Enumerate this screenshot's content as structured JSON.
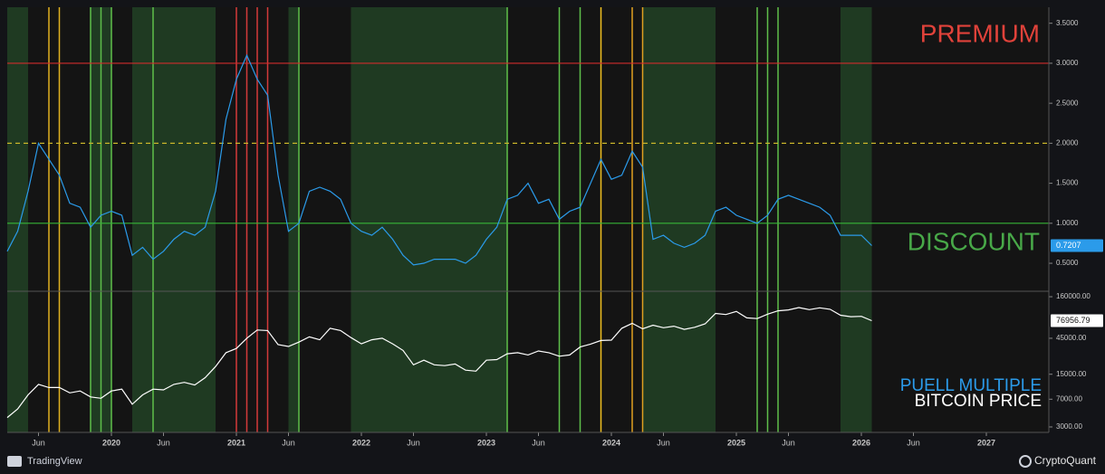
{
  "chart_data": [
    {
      "type": "line",
      "x": [
        "2019-03",
        "2019-04",
        "2019-05",
        "2019-06",
        "2019-07",
        "2019-08",
        "2019-09",
        "2019-10",
        "2019-11",
        "2019-12",
        "2020-01",
        "2020-02",
        "2020-03",
        "2020-04",
        "2020-05",
        "2020-06",
        "2020-07",
        "2020-08",
        "2020-09",
        "2020-10",
        "2020-11",
        "2020-12",
        "2021-01",
        "2021-02",
        "2021-03",
        "2021-04",
        "2021-05",
        "2021-06",
        "2021-07",
        "2021-08",
        "2021-09",
        "2021-10",
        "2021-11",
        "2021-12",
        "2022-01",
        "2022-02",
        "2022-03",
        "2022-04",
        "2022-05",
        "2022-06",
        "2022-07",
        "2022-08",
        "2022-09",
        "2022-10",
        "2022-11",
        "2022-12",
        "2023-01",
        "2023-02",
        "2023-03",
        "2023-04",
        "2023-05",
        "2023-06",
        "2023-07",
        "2023-08",
        "2023-09",
        "2023-10",
        "2023-11",
        "2023-12",
        "2024-01",
        "2024-02",
        "2024-03",
        "2024-04",
        "2024-05",
        "2024-06",
        "2024-07",
        "2024-08",
        "2024-09",
        "2024-10",
        "2024-11",
        "2024-12",
        "2025-01",
        "2025-02",
        "2025-03",
        "2025-04",
        "2025-05",
        "2025-06",
        "2025-07",
        "2025-08",
        "2025-09",
        "2025-10",
        "2025-11",
        "2025-12",
        "2026-01",
        "2026-02"
      ],
      "series": [
        {
          "name": "PUELL MULTIPLE",
          "color": "#2b9bea",
          "values": [
            0.65,
            0.9,
            1.4,
            2.0,
            1.8,
            1.6,
            1.25,
            1.2,
            0.95,
            1.1,
            1.15,
            1.1,
            0.6,
            0.7,
            0.55,
            0.65,
            0.8,
            0.9,
            0.85,
            0.95,
            1.4,
            2.3,
            2.8,
            3.1,
            2.8,
            2.6,
            1.6,
            0.9,
            1.0,
            1.4,
            1.45,
            1.4,
            1.3,
            1.0,
            0.9,
            0.85,
            0.95,
            0.8,
            0.6,
            0.48,
            0.5,
            0.55,
            0.55,
            0.55,
            0.5,
            0.6,
            0.8,
            0.95,
            1.3,
            1.35,
            1.5,
            1.25,
            1.3,
            1.05,
            1.15,
            1.2,
            1.5,
            1.8,
            1.55,
            1.6,
            1.9,
            1.7,
            0.8,
            0.85,
            0.75,
            0.7,
            0.75,
            0.85,
            1.15,
            1.2,
            1.1,
            1.05,
            1.0,
            1.1,
            1.3,
            1.35,
            1.3,
            1.25,
            1.2,
            1.1,
            0.85,
            0.85,
            0.85,
            0.7207
          ]
        }
      ],
      "xlim": [
        "2019-03",
        "2027-07"
      ],
      "ylim": [
        0.15,
        3.7
      ],
      "yticks": [
        {
          "value": 0.5,
          "label": "0.5000"
        },
        {
          "value": 1,
          "label": "1.0000"
        },
        {
          "value": 1.5,
          "label": "1.5000"
        },
        {
          "value": 2,
          "label": "2.0000"
        },
        {
          "value": 2.5,
          "label": "2.5000"
        },
        {
          "value": 3,
          "label": "3.0000"
        },
        {
          "value": 3.5,
          "label": "3.5000"
        }
      ],
      "levels": [
        {
          "value": 3,
          "color": "#d12c2c",
          "dashed": false
        },
        {
          "value": 2,
          "color": "#c9b52a",
          "dashed": true
        },
        {
          "value": 1,
          "color": "#37b437",
          "dashed": false
        }
      ],
      "annotations": [
        {
          "text": "PREMIUM",
          "color": "#e0423a",
          "value": 3.35
        },
        {
          "text": "DISCOUNT",
          "color": "#48a848",
          "value": 0.75
        }
      ]
    },
    {
      "type": "line",
      "x": [
        "2019-03",
        "2019-04",
        "2019-05",
        "2019-06",
        "2019-07",
        "2019-08",
        "2019-09",
        "2019-10",
        "2019-11",
        "2019-12",
        "2020-01",
        "2020-02",
        "2020-03",
        "2020-04",
        "2020-05",
        "2020-06",
        "2020-07",
        "2020-08",
        "2020-09",
        "2020-10",
        "2020-11",
        "2020-12",
        "2021-01",
        "2021-02",
        "2021-03",
        "2021-04",
        "2021-05",
        "2021-06",
        "2021-07",
        "2021-08",
        "2021-09",
        "2021-10",
        "2021-11",
        "2021-12",
        "2022-01",
        "2022-02",
        "2022-03",
        "2022-04",
        "2022-05",
        "2022-06",
        "2022-07",
        "2022-08",
        "2022-09",
        "2022-10",
        "2022-11",
        "2022-12",
        "2023-01",
        "2023-02",
        "2023-03",
        "2023-04",
        "2023-05",
        "2023-06",
        "2023-07",
        "2023-08",
        "2023-09",
        "2023-10",
        "2023-11",
        "2023-12",
        "2024-01",
        "2024-02",
        "2024-03",
        "2024-04",
        "2024-05",
        "2024-06",
        "2024-07",
        "2024-08",
        "2024-09",
        "2024-10",
        "2024-11",
        "2024-12",
        "2025-01",
        "2025-02",
        "2025-03",
        "2025-04",
        "2025-05",
        "2025-06",
        "2025-07",
        "2025-08",
        "2025-09",
        "2025-10",
        "2025-11",
        "2025-12",
        "2026-01",
        "2026-02"
      ],
      "series": [
        {
          "name": "BITCOIN PRICE",
          "color": "#ffffff",
          "values": [
            4000,
            5200,
            8000,
            11000,
            10000,
            10000,
            8500,
            9000,
            7500,
            7200,
            9000,
            9500,
            6000,
            8000,
            9500,
            9300,
            11000,
            11700,
            10800,
            13500,
            19000,
            29000,
            33000,
            45000,
            58000,
            57000,
            37000,
            35000,
            40000,
            47000,
            43000,
            61000,
            57000,
            46000,
            38000,
            43000,
            45000,
            38000,
            31000,
            20000,
            23000,
            20000,
            19500,
            20500,
            17000,
            16500,
            23000,
            23500,
            28000,
            29000,
            27000,
            30500,
            29000,
            26000,
            27000,
            34500,
            37700,
            42000,
            42500,
            61000,
            71000,
            60000,
            67000,
            62000,
            65000,
            59000,
            63000,
            70000,
            96000,
            93000,
            102000,
            84000,
            82000,
            94000,
            104000,
            107000,
            115000,
            108000,
            114000,
            109000,
            91000,
            87000,
            88000,
            76956.79
          ]
        }
      ],
      "log_scale": true,
      "xlim": [
        "2019-03",
        "2027-07"
      ],
      "ylim": [
        2540,
        189000
      ],
      "yticks": [
        {
          "value": 3000,
          "label": "3000.00"
        },
        {
          "value": 7000,
          "label": "7000.00"
        },
        {
          "value": 15000,
          "label": "15000.00"
        },
        {
          "value": 45000,
          "label": "45000.00"
        },
        {
          "value": 160000,
          "label": "160000.00"
        }
      ],
      "xticks": [
        {
          "value": "2019-06",
          "label": "Jun"
        },
        2020,
        {
          "value": "2020-06",
          "label": "Jun"
        },
        2021,
        {
          "value": "2021-06",
          "label": "Jun"
        },
        2022,
        {
          "value": "2022-06",
          "label": "Jun"
        },
        2023,
        {
          "value": "2023-06",
          "label": "Jun"
        },
        2024,
        {
          "value": "2024-06",
          "label": "Jun"
        },
        2025,
        {
          "value": "2025-06",
          "label": "Jun"
        },
        2026,
        {
          "value": "2026-06",
          "label": "Jun"
        },
        2027
      ]
    }
  ],
  "zones": [
    {
      "start": "2019-03",
      "end": "2019-05",
      "color": "#1f3a22"
    },
    {
      "start": "2019-11",
      "end": "2020-01",
      "color": "#1f3a22"
    },
    {
      "start": "2020-03",
      "end": "2020-11",
      "color": "#1f3a22"
    },
    {
      "start": "2021-06",
      "end": "2021-07",
      "color": "#1f3a22"
    },
    {
      "start": "2021-12",
      "end": "2023-03",
      "color": "#1f3a22"
    },
    {
      "start": "2024-04",
      "end": "2024-11",
      "color": "#1f3a22"
    },
    {
      "start": "2025-11",
      "end": "2026-02",
      "color": "#1f3a22"
    }
  ],
  "markers": [
    {
      "date": "2019-07",
      "color": "#e0b020"
    },
    {
      "date": "2019-08",
      "color": "#e0b020"
    },
    {
      "date": "2019-11",
      "color": "#5fbf4a"
    },
    {
      "date": "2019-12",
      "color": "#5fbf4a"
    },
    {
      "date": "2020-01",
      "color": "#5fbf4a"
    },
    {
      "date": "2020-05",
      "color": "#5fbf4a"
    },
    {
      "date": "2021-01",
      "color": "#d43a3a"
    },
    {
      "date": "2021-02",
      "color": "#d43a3a"
    },
    {
      "date": "2021-03",
      "color": "#d43a3a"
    },
    {
      "date": "2021-04",
      "color": "#d43a3a"
    },
    {
      "date": "2021-07",
      "color": "#5fbf4a"
    },
    {
      "date": "2023-03",
      "color": "#5fbf4a"
    },
    {
      "date": "2023-08",
      "color": "#5fbf4a"
    },
    {
      "date": "2023-10",
      "color": "#5fbf4a"
    },
    {
      "date": "2023-12",
      "color": "#f0c020"
    },
    {
      "date": "2024-03",
      "color": "#e0a020"
    },
    {
      "date": "2024-04",
      "color": "#e0a020"
    },
    {
      "date": "2025-03",
      "color": "#5fbf4a"
    },
    {
      "date": "2025-04",
      "color": "#5fbf4a"
    },
    {
      "date": "2025-05",
      "color": "#5fbf4a"
    }
  ],
  "footer": {
    "left": "TradingView",
    "right": "CryptoQuant"
  }
}
